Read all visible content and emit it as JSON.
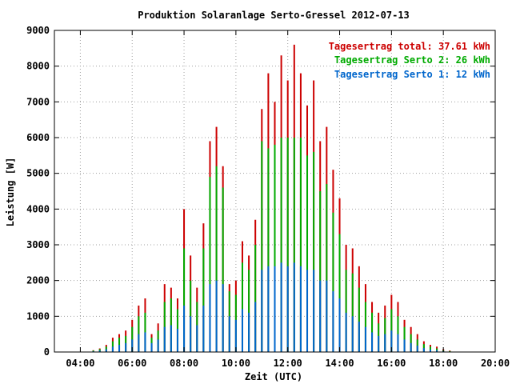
{
  "chart_data": {
    "type": "bar",
    "title": "Produktion Solaranlage Serto-Gressel 2012-07-13",
    "xlabel": "Zeit (UTC)",
    "ylabel": "Leistung [W]",
    "ylim": [
      0,
      9000
    ],
    "xlim_hours": [
      3.0,
      20.0
    ],
    "yticks": [
      "0",
      "1000",
      "2000",
      "3000",
      "4000",
      "5000",
      "6000",
      "7000",
      "8000",
      "9000"
    ],
    "xticks": [
      "04:00",
      "06:00",
      "08:00",
      "10:00",
      "12:00",
      "14:00",
      "16:00",
      "18:00",
      "20:00"
    ],
    "grid": true,
    "legend_position": "top-right",
    "legend": [
      "Tagesertrag total: 37.61 kWh",
      "Tagesertrag Serto 2: 26 kWh",
      "Tagesertrag Serto 1: 12 kWh"
    ],
    "colors": {
      "total": "#cc0000",
      "serto2": "#00aa00",
      "serto1": "#0066cc"
    },
    "x": [
      "04:30",
      "04:45",
      "05:00",
      "05:15",
      "05:30",
      "05:45",
      "06:00",
      "06:15",
      "06:30",
      "06:45",
      "07:00",
      "07:15",
      "07:30",
      "07:45",
      "08:00",
      "08:15",
      "08:30",
      "08:45",
      "09:00",
      "09:15",
      "09:30",
      "09:45",
      "10:00",
      "10:15",
      "10:30",
      "10:45",
      "11:00",
      "11:15",
      "11:30",
      "11:45",
      "12:00",
      "12:15",
      "12:30",
      "12:45",
      "13:00",
      "13:15",
      "13:30",
      "13:45",
      "14:00",
      "14:15",
      "14:30",
      "14:45",
      "15:00",
      "15:15",
      "15:30",
      "15:45",
      "16:00",
      "16:15",
      "16:30",
      "16:45",
      "17:00",
      "17:15",
      "17:30",
      "17:45",
      "18:00",
      "18:15"
    ],
    "series": [
      {
        "name": "Tagesertrag total: 37.61 kWh",
        "values": [
          50,
          100,
          200,
          400,
          500,
          600,
          900,
          1300,
          1500,
          500,
          800,
          1900,
          1800,
          1500,
          4000,
          2700,
          1800,
          3600,
          5900,
          6300,
          5200,
          1900,
          2000,
          3100,
          2700,
          3700,
          6800,
          7800,
          7000,
          8300,
          7600,
          8600,
          7800,
          6900,
          7600,
          5900,
          6300,
          5100,
          4300,
          3000,
          2900,
          2400,
          1900,
          1400,
          1100,
          1300,
          1600,
          1400,
          900,
          700,
          500,
          300,
          200,
          150,
          80,
          40
        ]
      },
      {
        "name": "Tagesertrag Serto 2: 26 kWh",
        "values": [
          40,
          80,
          150,
          300,
          400,
          450,
          700,
          1000,
          1100,
          400,
          600,
          1400,
          1500,
          1200,
          2900,
          2000,
          1400,
          2900,
          4900,
          5200,
          4600,
          1700,
          1600,
          2500,
          2300,
          3000,
          5900,
          5700,
          5800,
          6000,
          6000,
          6000,
          6000,
          5500,
          5600,
          4500,
          4700,
          3900,
          3300,
          2300,
          2200,
          1800,
          1400,
          1100,
          800,
          950,
          1200,
          1000,
          700,
          500,
          350,
          220,
          150,
          100,
          50,
          25
        ]
      },
      {
        "name": "Tagesertrag Serto 1: 12 kWh",
        "values": [
          20,
          40,
          80,
          150,
          200,
          250,
          350,
          500,
          550,
          250,
          350,
          700,
          750,
          650,
          1300,
          1000,
          750,
          1300,
          1900,
          2000,
          1900,
          1000,
          900,
          1200,
          1100,
          1400,
          2300,
          2400,
          2400,
          2500,
          2400,
          2500,
          2400,
          2300,
          2300,
          2000,
          2000,
          1700,
          1500,
          1100,
          1000,
          850,
          700,
          550,
          450,
          500,
          600,
          500,
          350,
          250,
          180,
          110,
          70,
          50,
          25,
          10
        ]
      }
    ]
  }
}
